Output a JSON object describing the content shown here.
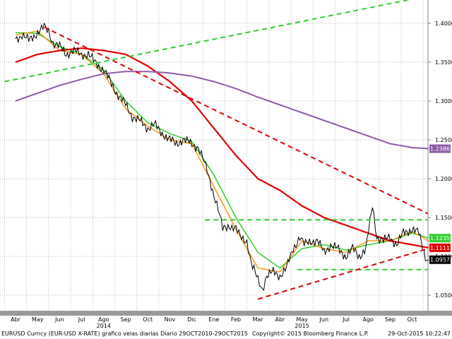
{
  "colors": {
    "background": "#ffffff",
    "grid": "#b9b9b9",
    "price": "#000000",
    "ma_red": "#e00000",
    "ma_green": "#33cc33",
    "ma_orange": "#f29a1c",
    "ma_purple": "#8e5ba8",
    "trend_red": "#e00000",
    "trend_green": "#33cc33"
  },
  "footer": {
    "left": "EURUSD Curncy (EUR-USD X-RATE) grafico velas diarias  Diario 29OCT2010-29OCT2015",
    "center": "Copyright© 2015 Bloomberg Finance L.P.",
    "right": "29-Oct-2015  10:22:47"
  },
  "chart_data": {
    "type": "line",
    "ylim": [
      1.03,
      1.43
    ],
    "yticks": [
      "1.4000",
      "1.3500",
      "1.3000",
      "1.2500",
      "1.2000",
      "1.1500",
      "1.1000",
      "1.0500"
    ],
    "ytick_values": [
      1.4,
      1.35,
      1.3,
      1.25,
      1.2,
      1.15,
      1.1,
      1.05
    ],
    "x_months": [
      "Abr",
      "May",
      "Jun",
      "Jul",
      "Ago",
      "Sep",
      "Oct",
      "Nov",
      "Dic",
      "Ene",
      "Feb",
      "Mar",
      "Abr",
      "May",
      "Jun",
      "Jul",
      "Ago",
      "Sep",
      "Oct"
    ],
    "x_years": [
      {
        "label": "2014",
        "month_index": 4
      },
      {
        "label": "2015",
        "month_index": 13
      }
    ],
    "last_value_labels": [
      {
        "text": "1.2386",
        "value": 1.2386,
        "series": "ma_purple"
      },
      {
        "text": "1.1235",
        "value": 1.1235,
        "series": "ma_green"
      },
      {
        "text": "1.1111",
        "value": 1.1111,
        "series": "ma_red"
      },
      {
        "text": "1.0957",
        "value": 1.0957,
        "series": "price"
      }
    ],
    "price_anchors": [
      [
        0,
        1.38
      ],
      [
        0.3,
        1.385
      ],
      [
        0.6,
        1.378
      ],
      [
        1.0,
        1.388
      ],
      [
        1.3,
        1.395
      ],
      [
        1.5,
        1.39
      ],
      [
        1.7,
        1.375
      ],
      [
        2.0,
        1.37
      ],
      [
        2.3,
        1.36
      ],
      [
        2.6,
        1.365
      ],
      [
        3.0,
        1.36
      ],
      [
        3.3,
        1.36
      ],
      [
        3.6,
        1.35
      ],
      [
        4.0,
        1.34
      ],
      [
        4.3,
        1.325
      ],
      [
        4.6,
        1.31
      ],
      [
        5.0,
        1.295
      ],
      [
        5.3,
        1.28
      ],
      [
        5.6,
        1.275
      ],
      [
        6.0,
        1.265
      ],
      [
        6.3,
        1.27
      ],
      [
        6.6,
        1.26
      ],
      [
        7.0,
        1.25
      ],
      [
        7.3,
        1.245
      ],
      [
        7.6,
        1.25
      ],
      [
        8.0,
        1.245
      ],
      [
        8.3,
        1.24
      ],
      [
        8.5,
        1.225
      ],
      [
        8.7,
        1.21
      ],
      [
        9.0,
        1.18
      ],
      [
        9.2,
        1.16
      ],
      [
        9.4,
        1.135
      ],
      [
        9.7,
        1.14
      ],
      [
        10.0,
        1.135
      ],
      [
        10.2,
        1.125
      ],
      [
        10.5,
        1.12
      ],
      [
        10.7,
        1.09
      ],
      [
        11.0,
        1.07
      ],
      [
        11.2,
        1.058
      ],
      [
        11.4,
        1.075
      ],
      [
        11.7,
        1.08
      ],
      [
        12.0,
        1.075
      ],
      [
        12.3,
        1.085
      ],
      [
        12.6,
        1.11
      ],
      [
        12.9,
        1.125
      ],
      [
        13.1,
        1.115
      ],
      [
        13.4,
        1.12
      ],
      [
        13.7,
        1.12
      ],
      [
        14.0,
        1.105
      ],
      [
        14.3,
        1.115
      ],
      [
        14.6,
        1.11
      ],
      [
        15.0,
        1.1
      ],
      [
        15.3,
        1.11
      ],
      [
        15.6,
        1.1
      ],
      [
        15.9,
        1.11
      ],
      [
        16.2,
        1.165
      ],
      [
        16.4,
        1.125
      ],
      [
        16.7,
        1.12
      ],
      [
        17.0,
        1.125
      ],
      [
        17.3,
        1.115
      ],
      [
        17.6,
        1.13
      ],
      [
        18.0,
        1.135
      ],
      [
        18.3,
        1.13
      ],
      [
        18.6,
        1.1
      ],
      [
        18.75,
        1.0957
      ]
    ],
    "series": [
      {
        "key": "ma_green",
        "anchors": [
          [
            0,
            1.388
          ],
          [
            1.0,
            1.387
          ],
          [
            2.0,
            1.37
          ],
          [
            3.0,
            1.36
          ],
          [
            4.0,
            1.34
          ],
          [
            5.0,
            1.3
          ],
          [
            6.0,
            1.272
          ],
          [
            7.0,
            1.258
          ],
          [
            8.0,
            1.248
          ],
          [
            9.0,
            1.205
          ],
          [
            10.0,
            1.15
          ],
          [
            11.0,
            1.105
          ],
          [
            12.0,
            1.085
          ],
          [
            13.0,
            1.11
          ],
          [
            14.0,
            1.115
          ],
          [
            15.0,
            1.108
          ],
          [
            16.0,
            1.115
          ],
          [
            17.0,
            1.12
          ],
          [
            18.0,
            1.13
          ],
          [
            18.75,
            1.1235
          ]
        ]
      },
      {
        "key": "ma_orange",
        "anchors": [
          [
            0,
            1.385
          ],
          [
            1.0,
            1.39
          ],
          [
            2.0,
            1.365
          ],
          [
            3.0,
            1.36
          ],
          [
            4.0,
            1.335
          ],
          [
            5.0,
            1.29
          ],
          [
            6.0,
            1.268
          ],
          [
            7.0,
            1.25
          ],
          [
            8.0,
            1.245
          ],
          [
            9.0,
            1.19
          ],
          [
            10.0,
            1.135
          ],
          [
            11.0,
            1.085
          ],
          [
            12.0,
            1.08
          ],
          [
            13.0,
            1.12
          ],
          [
            14.0,
            1.11
          ],
          [
            15.0,
            1.105
          ],
          [
            16.0,
            1.12
          ],
          [
            17.0,
            1.12
          ],
          [
            18.0,
            1.132
          ],
          [
            18.75,
            1.12
          ]
        ]
      },
      {
        "key": "ma_red",
        "anchors": [
          [
            0,
            1.35
          ],
          [
            1.0,
            1.36
          ],
          [
            2.0,
            1.365
          ],
          [
            3.0,
            1.368
          ],
          [
            4.0,
            1.365
          ],
          [
            5.0,
            1.36
          ],
          [
            6.0,
            1.345
          ],
          [
            7.0,
            1.325
          ],
          [
            8.0,
            1.3
          ],
          [
            9.0,
            1.265
          ],
          [
            10.0,
            1.23
          ],
          [
            11.0,
            1.2
          ],
          [
            12.0,
            1.185
          ],
          [
            13.0,
            1.165
          ],
          [
            14.0,
            1.15
          ],
          [
            15.0,
            1.14
          ],
          [
            16.0,
            1.13
          ],
          [
            17.0,
            1.12
          ],
          [
            18.0,
            1.115
          ],
          [
            18.75,
            1.1111
          ]
        ]
      },
      {
        "key": "ma_purple",
        "anchors": [
          [
            0,
            1.3
          ],
          [
            1.0,
            1.31
          ],
          [
            2.0,
            1.32
          ],
          [
            3.0,
            1.328
          ],
          [
            4.0,
            1.335
          ],
          [
            5.0,
            1.338
          ],
          [
            6.0,
            1.338
          ],
          [
            7.0,
            1.336
          ],
          [
            8.0,
            1.332
          ],
          [
            9.0,
            1.325
          ],
          [
            10.0,
            1.316
          ],
          [
            11.0,
            1.305
          ],
          [
            12.0,
            1.295
          ],
          [
            13.0,
            1.285
          ],
          [
            14.0,
            1.275
          ],
          [
            15.0,
            1.265
          ],
          [
            16.0,
            1.255
          ],
          [
            17.0,
            1.245
          ],
          [
            18.0,
            1.24
          ],
          [
            18.75,
            1.2386
          ]
        ]
      }
    ],
    "trendlines": [
      {
        "key": "trend_green",
        "from": [
          -0.5,
          1.325
        ],
        "to": [
          17.8,
          1.43
        ]
      },
      {
        "key": "trend_red",
        "from": [
          1.3,
          1.395
        ],
        "to": [
          19.0,
          1.155
        ]
      },
      {
        "key": "trend_green",
        "from": [
          8.6,
          1.147
        ],
        "to": [
          19.0,
          1.147
        ]
      },
      {
        "key": "trend_green",
        "from": [
          12.8,
          1.083
        ],
        "to": [
          19.0,
          1.083
        ]
      },
      {
        "key": "trend_red",
        "from": [
          11.0,
          1.045
        ],
        "to": [
          19.0,
          1.11
        ]
      }
    ]
  }
}
